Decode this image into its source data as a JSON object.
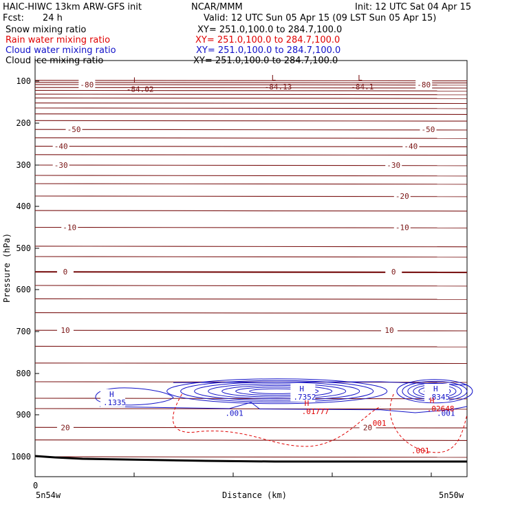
{
  "header": {
    "model": "HAIC-HIWC 13km ARW-GFS init",
    "org": "NCAR/MMM",
    "init": "Init: 12 UTC Sat 04 Apr 15",
    "fcst_label": "Fcst:",
    "fcst_value": "24 h",
    "valid": "Valid: 12 UTC Sun 05 Apr 15 (09 LST Sun 05 Apr 15)"
  },
  "fields": [
    {
      "name": "Snow mixing ratio",
      "xy": "XY= 251.0,100.0 to 284.7,100.0",
      "color": "#000000"
    },
    {
      "name": "Rain water mixing ratio",
      "xy": "XY= 251.0,100.0 to 284.7,100.0",
      "color": "#e00000"
    },
    {
      "name": "Cloud water mixing ratio",
      "xy": "XY= 251.0,100.0 to 284.7,100.0",
      "color": "#1010c8"
    },
    {
      "name": "Cloud ice mixing ratio",
      "xy": "XY= 251.0,100.0 to 284.7,100.0",
      "color": "#000000"
    }
  ],
  "chart_data": {
    "type": "contour-cross-section",
    "ylabel": "Pressure (hPa)",
    "xlabel": "Distance (km)",
    "x_left_label": "5n54w",
    "x_right_label": "5n50w",
    "x_tick_labels": [
      "0"
    ],
    "y_ticks": [
      100,
      200,
      300,
      400,
      500,
      600,
      700,
      800,
      900,
      1000
    ],
    "ylim": [
      1050,
      50
    ],
    "y_scale": "log-pressure",
    "temperature_isotherms_C": [
      -80,
      -50,
      -40,
      -30,
      -20,
      -10,
      0,
      10,
      20
    ],
    "temperature_labels": [
      {
        "text": "-80",
        "p": 108,
        "x": 0.12
      },
      {
        "text": "-80",
        "p": 108,
        "x": 0.9
      },
      {
        "text": "-50",
        "p": 215,
        "x": 0.09
      },
      {
        "text": "-50",
        "p": 215,
        "x": 0.91
      },
      {
        "text": "-40",
        "p": 255,
        "x": 0.06
      },
      {
        "text": "-40",
        "p": 255,
        "x": 0.87
      },
      {
        "text": "-30",
        "p": 300,
        "x": 0.06
      },
      {
        "text": "-30",
        "p": 300,
        "x": 0.83
      },
      {
        "text": "-20",
        "p": 375,
        "x": 0.85
      },
      {
        "text": "-10",
        "p": 450,
        "x": 0.08
      },
      {
        "text": "-10",
        "p": 450,
        "x": 0.85
      },
      {
        "text": "0",
        "p": 557,
        "x": 0.07
      },
      {
        "text": "0",
        "p": 557,
        "x": 0.83
      },
      {
        "text": "10",
        "p": 697,
        "x": 0.07
      },
      {
        "text": "10",
        "p": 697,
        "x": 0.82
      },
      {
        "text": "20",
        "p": 930,
        "x": 0.07
      },
      {
        "text": "20",
        "p": 930,
        "x": 0.77
      }
    ],
    "low_centers": [
      {
        "label": "L",
        "value": "-84.02",
        "p": 107,
        "x": 0.24
      },
      {
        "label": "L",
        "value": "-84.13",
        "p": 102,
        "x": 0.56
      },
      {
        "label": "L",
        "value": "-84.1",
        "p": 102,
        "x": 0.76
      }
    ],
    "cloud_water_maxima": [
      {
        "label": "H",
        "value": ".1335",
        "p": 858,
        "x": 0.18
      },
      {
        "label": "H",
        "value": ".7352",
        "p": 845,
        "x": 0.62
      },
      {
        "label": "H",
        "value": ".8345",
        "p": 845,
        "x": 0.93
      }
    ],
    "cloud_water_min_label": {
      "value": ".001",
      "x": [
        0.44,
        0.93
      ],
      "p": 886
    },
    "rain_water_maxima": [
      {
        "label": "H",
        "value": ".01777",
        "p": 875,
        "x": 0.63
      },
      {
        "label": "H",
        "value": ".02648",
        "p": 868,
        "x": 0.92
      }
    ],
    "rain_water_min_label": {
      "value": ".001",
      "points": [
        {
          "x": 0.79,
          "p": 920
        },
        {
          "x": 0.89,
          "p": 985
        }
      ]
    }
  }
}
